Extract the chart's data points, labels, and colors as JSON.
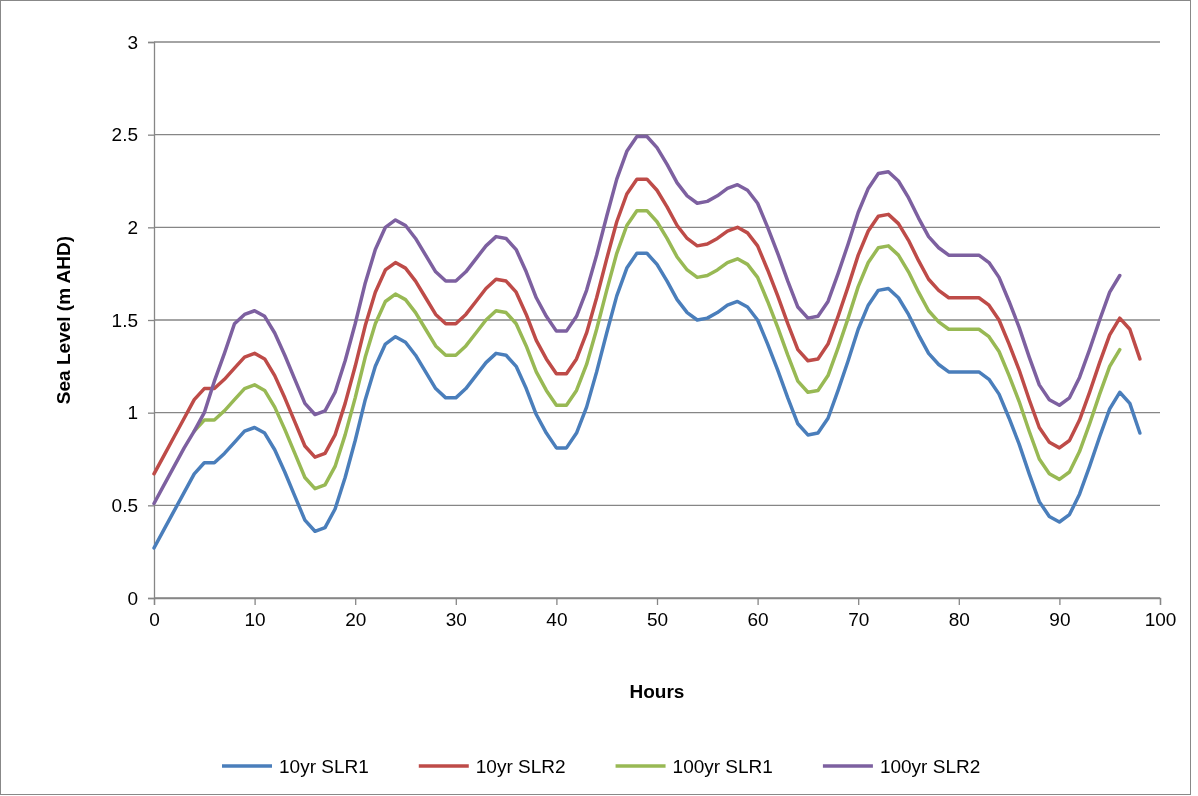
{
  "chart_data": {
    "type": "line",
    "xlabel": "Hours",
    "ylabel": "Sea Level (m AHD)",
    "x": [
      0,
      1,
      2,
      3,
      4,
      5,
      6,
      7,
      8,
      9,
      10,
      11,
      12,
      13,
      14,
      15,
      16,
      17,
      18,
      19,
      20,
      21,
      22,
      23,
      24,
      25,
      26,
      27,
      28,
      29,
      30,
      31,
      32,
      33,
      34,
      35,
      36,
      37,
      38,
      39,
      40,
      41,
      42,
      43,
      44,
      45,
      46,
      47,
      48,
      49,
      50,
      51,
      52,
      53,
      54,
      55,
      56,
      57,
      58,
      59,
      60,
      61,
      62,
      63,
      64,
      65,
      66,
      67,
      68,
      69,
      70,
      71,
      72,
      73,
      74,
      75,
      76,
      77,
      78,
      79,
      80,
      81,
      82,
      83,
      84,
      85,
      86,
      87,
      88,
      89,
      90,
      91,
      92,
      93,
      94,
      95,
      96,
      97,
      98
    ],
    "xlim": [
      0,
      100
    ],
    "xticks": [
      0,
      10,
      20,
      30,
      40,
      50,
      60,
      70,
      80,
      90,
      100
    ],
    "ylim": [
      0,
      3
    ],
    "yticks": [
      0,
      0.5,
      1,
      1.5,
      2,
      2.5,
      3
    ],
    "grid": "y",
    "legend": "bottom",
    "marker": "none",
    "line_style": "solid",
    "series": [
      {
        "name": "10yr SLR1",
        "color": "#4a7ebb",
        "values": [
          0.27,
          0.37,
          0.47,
          0.57,
          0.67,
          0.73,
          0.73,
          0.78,
          0.84,
          0.9,
          0.92,
          0.89,
          0.8,
          0.68,
          0.55,
          0.42,
          0.36,
          0.38,
          0.48,
          0.65,
          0.85,
          1.07,
          1.25,
          1.37,
          1.41,
          1.38,
          1.31,
          1.22,
          1.13,
          1.08,
          1.08,
          1.13,
          1.2,
          1.27,
          1.32,
          1.31,
          1.25,
          1.13,
          0.99,
          0.89,
          0.81,
          0.81,
          0.89,
          1.03,
          1.22,
          1.43,
          1.63,
          1.78,
          1.86,
          1.86,
          1.8,
          1.71,
          1.61,
          1.54,
          1.5,
          1.51,
          1.54,
          1.58,
          1.6,
          1.57,
          1.5,
          1.37,
          1.23,
          1.08,
          0.94,
          0.88,
          0.89,
          0.97,
          1.12,
          1.28,
          1.45,
          1.58,
          1.66,
          1.67,
          1.62,
          1.53,
          1.42,
          1.32,
          1.26,
          1.22,
          1.22,
          1.22,
          1.22,
          1.18,
          1.1,
          0.97,
          0.83,
          0.67,
          0.52,
          0.44,
          0.41,
          0.45,
          0.56,
          0.71,
          0.87,
          1.02,
          1.11,
          1.05,
          0.89
        ]
      },
      {
        "name": "10yr SLR2",
        "color": "#be4b48",
        "values": [
          0.67,
          0.77,
          0.87,
          0.97,
          1.07,
          1.13,
          1.13,
          1.18,
          1.24,
          1.3,
          1.32,
          1.29,
          1.2,
          1.08,
          0.95,
          0.82,
          0.76,
          0.78,
          0.88,
          1.05,
          1.25,
          1.47,
          1.65,
          1.77,
          1.81,
          1.78,
          1.71,
          1.62,
          1.53,
          1.48,
          1.48,
          1.53,
          1.6,
          1.67,
          1.72,
          1.71,
          1.65,
          1.53,
          1.39,
          1.29,
          1.21,
          1.21,
          1.29,
          1.43,
          1.62,
          1.83,
          2.03,
          2.18,
          2.26,
          2.26,
          2.2,
          2.11,
          2.01,
          1.94,
          1.9,
          1.91,
          1.94,
          1.98,
          2.0,
          1.97,
          1.9,
          1.77,
          1.63,
          1.48,
          1.34,
          1.28,
          1.29,
          1.37,
          1.52,
          1.68,
          1.85,
          1.98,
          2.06,
          2.07,
          2.02,
          1.93,
          1.82,
          1.72,
          1.66,
          1.62,
          1.62,
          1.62,
          1.62,
          1.58,
          1.5,
          1.37,
          1.23,
          1.07,
          0.92,
          0.84,
          0.81,
          0.85,
          0.96,
          1.11,
          1.27,
          1.42,
          1.51,
          1.45,
          1.29
        ]
      },
      {
        "name": "100yr SLR1",
        "color": "#98b954",
        "values": [
          null,
          null,
          null,
          null,
          0.9,
          0.96,
          0.96,
          1.01,
          1.07,
          1.13,
          1.15,
          1.12,
          1.03,
          0.91,
          0.78,
          0.65,
          0.59,
          0.61,
          0.71,
          0.88,
          1.08,
          1.3,
          1.48,
          1.6,
          1.64,
          1.61,
          1.54,
          1.45,
          1.36,
          1.31,
          1.31,
          1.36,
          1.43,
          1.5,
          1.55,
          1.54,
          1.48,
          1.36,
          1.22,
          1.12,
          1.04,
          1.04,
          1.12,
          1.26,
          1.45,
          1.66,
          1.86,
          2.01,
          2.09,
          2.09,
          2.03,
          1.94,
          1.84,
          1.77,
          1.73,
          1.74,
          1.77,
          1.81,
          1.83,
          1.8,
          1.73,
          1.6,
          1.46,
          1.31,
          1.17,
          1.11,
          1.12,
          1.2,
          1.35,
          1.51,
          1.68,
          1.81,
          1.89,
          1.9,
          1.85,
          1.76,
          1.65,
          1.55,
          1.49,
          1.45,
          1.45,
          1.45,
          1.45,
          1.41,
          1.33,
          1.2,
          1.06,
          0.9,
          0.75,
          0.67,
          0.64,
          0.68,
          0.79,
          0.94,
          1.1,
          1.25,
          1.34,
          null,
          null
        ]
      },
      {
        "name": "100yr SLR2",
        "color": "#7d60a0",
        "values": [
          0.51,
          0.61,
          0.71,
          0.81,
          0.9,
          1.0,
          1.17,
          1.32,
          1.48,
          1.53,
          1.55,
          1.52,
          1.43,
          1.31,
          1.18,
          1.05,
          0.99,
          1.01,
          1.11,
          1.28,
          1.48,
          1.7,
          1.88,
          2.0,
          2.04,
          2.01,
          1.94,
          1.85,
          1.76,
          1.71,
          1.71,
          1.76,
          1.83,
          1.9,
          1.95,
          1.94,
          1.88,
          1.76,
          1.62,
          1.52,
          1.44,
          1.44,
          1.52,
          1.66,
          1.85,
          2.06,
          2.26,
          2.41,
          2.49,
          2.49,
          2.43,
          2.34,
          2.24,
          2.17,
          2.13,
          2.14,
          2.17,
          2.21,
          2.23,
          2.2,
          2.13,
          2.0,
          1.86,
          1.71,
          1.57,
          1.51,
          1.52,
          1.6,
          1.75,
          1.91,
          2.08,
          2.21,
          2.29,
          2.3,
          2.25,
          2.16,
          2.05,
          1.95,
          1.89,
          1.85,
          1.85,
          1.85,
          1.85,
          1.81,
          1.73,
          1.6,
          1.46,
          1.3,
          1.15,
          1.07,
          1.04,
          1.08,
          1.19,
          1.34,
          1.5,
          1.65,
          1.74,
          null,
          null
        ]
      }
    ]
  }
}
